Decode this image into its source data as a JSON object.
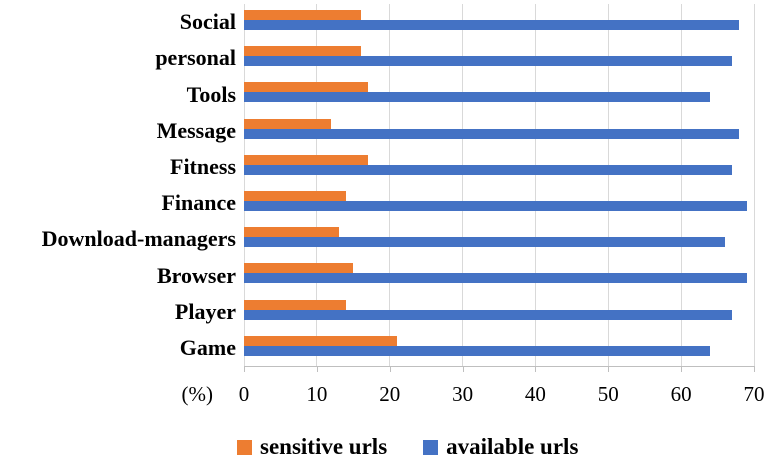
{
  "chart_data": {
    "type": "bar",
    "orientation": "horizontal",
    "title": "",
    "xlabel": "(%)",
    "ylabel": "",
    "categories": [
      "Social",
      "personal",
      "Tools",
      "Message",
      "Fitness",
      "Finance",
      "Download-managers",
      "Browser",
      "Player",
      "Game"
    ],
    "series": [
      {
        "name": "sensitive urls",
        "color": "#ED7D31",
        "values": [
          16,
          16,
          17,
          12,
          17,
          14,
          13,
          15,
          14,
          21
        ]
      },
      {
        "name": "available urls",
        "color": "#4472C4",
        "values": [
          68,
          67,
          64,
          68,
          67,
          69,
          66,
          69,
          67,
          64
        ]
      }
    ],
    "x_ticks": [
      0,
      10,
      20,
      30,
      40,
      50,
      60,
      70
    ],
    "xlim": [
      0,
      70
    ],
    "grid": "vertical-only",
    "gridline_color": "#D9D9D9",
    "axis_line_color": "#BFBFBF",
    "legend_position": "bottom",
    "background_color": "#FFFFFF"
  }
}
